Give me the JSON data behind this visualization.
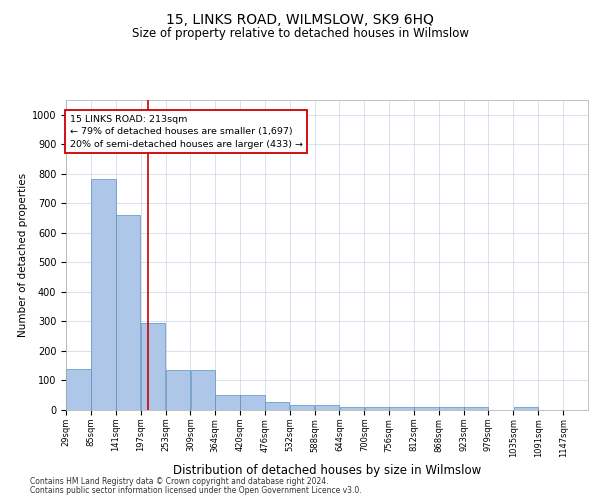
{
  "title": "15, LINKS ROAD, WILMSLOW, SK9 6HQ",
  "subtitle": "Size of property relative to detached houses in Wilmslow",
  "xlabel": "Distribution of detached houses by size in Wilmslow",
  "ylabel": "Number of detached properties",
  "footnote1": "Contains HM Land Registry data © Crown copyright and database right 2024.",
  "footnote2": "Contains public sector information licensed under the Open Government Licence v3.0.",
  "bar_edges": [
    29,
    85,
    141,
    197,
    253,
    309,
    364,
    420,
    476,
    532,
    588,
    644,
    700,
    756,
    812,
    868,
    923,
    979,
    1035,
    1091,
    1147
  ],
  "bar_heights": [
    140,
    783,
    660,
    295,
    135,
    135,
    52,
    52,
    28,
    18,
    18,
    10,
    10,
    10,
    10,
    10,
    10,
    0,
    9,
    0,
    0
  ],
  "bar_color": "#aec6e8",
  "bar_edge_color": "#5a8fc0",
  "vline_x": 213,
  "vline_color": "#cc0000",
  "annotation_line1": "15 LINKS ROAD: 213sqm",
  "annotation_line2": "← 79% of detached houses are smaller (1,697)",
  "annotation_line3": "20% of semi-detached houses are larger (433) →",
  "annotation_box_color": "#ffffff",
  "annotation_box_edge_color": "#cc0000",
  "ylim": [
    0,
    1050
  ],
  "background_color": "#ffffff",
  "grid_color": "#c8d4e8",
  "yticks": [
    0,
    100,
    200,
    300,
    400,
    500,
    600,
    700,
    800,
    900,
    1000
  ],
  "tick_labels": [
    "29sqm",
    "85sqm",
    "141sqm",
    "197sqm",
    "253sqm",
    "309sqm",
    "364sqm",
    "420sqm",
    "476sqm",
    "532sqm",
    "588sqm",
    "644sqm",
    "700sqm",
    "756sqm",
    "812sqm",
    "868sqm",
    "923sqm",
    "979sqm",
    "1035sqm",
    "1091sqm",
    "1147sqm"
  ],
  "title_fontsize": 10,
  "subtitle_fontsize": 8.5,
  "ylabel_fontsize": 7.5,
  "xlabel_fontsize": 8.5,
  "tick_fontsize": 6,
  "footnote_fontsize": 5.5
}
